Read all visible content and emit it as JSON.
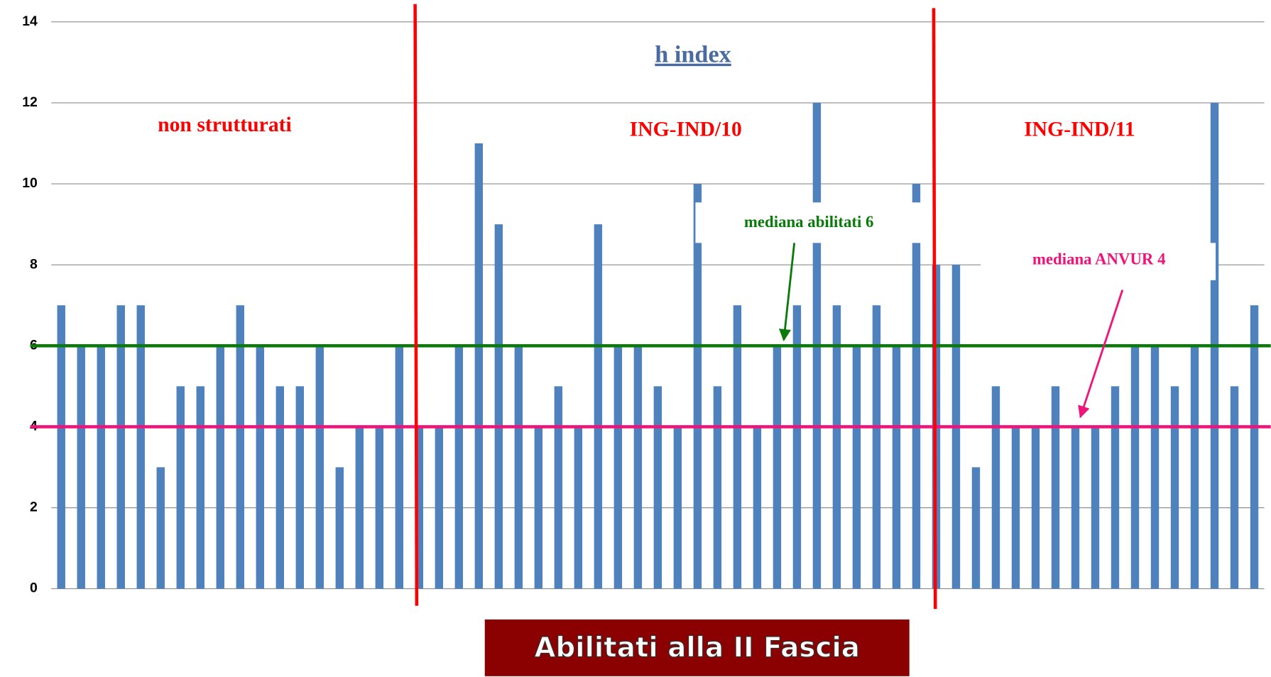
{
  "chart_data": {
    "type": "bar",
    "title": "h index",
    "subtitle": "Abilitati alla II Fascia",
    "categories": [
      null,
      null,
      null,
      null,
      null,
      null,
      null,
      null,
      null,
      null,
      null,
      null,
      null,
      null,
      null,
      null,
      null,
      null,
      null,
      null,
      null,
      null,
      null,
      null,
      null,
      null,
      null,
      null,
      null,
      null,
      null,
      null,
      null,
      null,
      null,
      null,
      null,
      null,
      null,
      null,
      null,
      null,
      null,
      null,
      null,
      null,
      null,
      null,
      null,
      null,
      null,
      null,
      null,
      null,
      null,
      null,
      null,
      null,
      null,
      null,
      null
    ],
    "values": [
      7,
      6,
      6,
      7,
      7,
      3,
      5,
      5,
      6,
      7,
      6,
      5,
      5,
      6,
      3,
      4,
      4,
      6,
      4,
      4,
      6,
      11,
      9,
      6,
      4,
      5,
      4,
      9,
      6,
      6,
      5,
      4,
      10,
      5,
      7,
      4,
      6,
      7,
      12,
      7,
      6,
      7,
      6,
      10,
      8,
      8,
      3,
      5,
      4,
      4,
      5,
      4,
      4,
      5,
      6,
      6,
      5,
      6,
      12,
      5,
      7
    ],
    "color": "#4f81bd",
    "ylim": [
      0,
      14
    ],
    "yticks": [
      0,
      2,
      4,
      6,
      8,
      10,
      12,
      14
    ],
    "grid": true,
    "annotations": [
      "non strutturati",
      "ING-IND/10",
      "ING-IND/11"
    ],
    "reference_lines": [
      {
        "label": "mediana abilitati 6",
        "value": 6,
        "color": "#0a7a0a"
      },
      {
        "label": "mediana ANVUR 4",
        "value": 4,
        "color": "#f0137a"
      }
    ]
  }
}
